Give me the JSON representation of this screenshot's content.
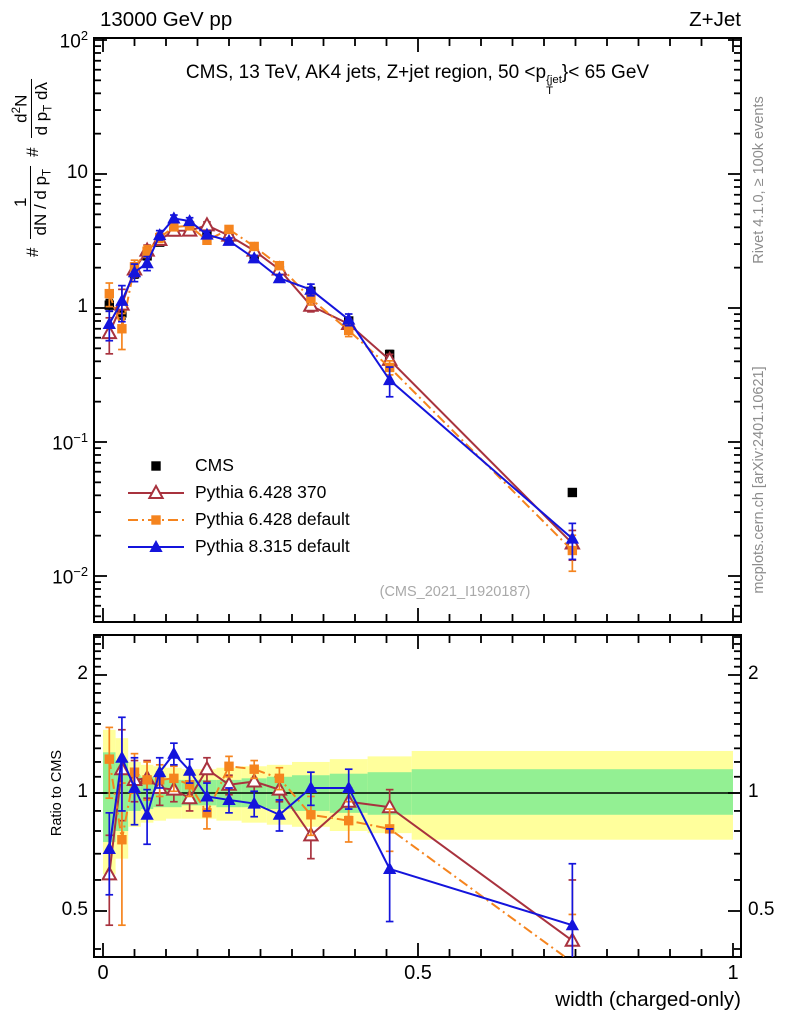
{
  "header": {
    "left": "13000 GeV pp",
    "right": "Z+Jet"
  },
  "panel_title_html": "CMS, 13 TeV, AK4 jets, Z+jet region, 50 &lt;p<span class=\"stk\"><sup>{jet</sup><sub>T</sub></span>}&lt; 65 GeV",
  "watermark": "(CMS_2021_I1920187)",
  "side_notes": {
    "top": "Rivet 4.1.0, ≥ 100k events",
    "bottom": "mcplots.cern.ch [arXiv:2401.10621]"
  },
  "ylabel": {
    "hash1": "#",
    "frac1_num": "1",
    "frac1_den_html": "dN / d p<sub>T</sub>",
    "hash2": "#",
    "frac2_num_html": "d<sup>2</sup>N",
    "frac2_den_html": "d p<sub>T</sub> dλ"
  },
  "ratio_ylabel": "Ratio to CMS",
  "xlabel": "width (charged-only)",
  "chart_data": {
    "type": "line-with-ratio",
    "title": "CMS, 13 TeV, AK4 jets, Z+jet region, 50 <pT{jet}< 65 GeV",
    "xlabel": "width (charged-only)",
    "x_axis": {
      "range": [
        -0.014,
        1.014
      ],
      "minor_step": 0.05,
      "major_ticks": [
        {
          "v": 0,
          "label": "0"
        },
        {
          "v": 0.5,
          "label": "0.5"
        },
        {
          "v": 1,
          "label": "1"
        }
      ]
    },
    "main_y_axis": {
      "scale": "log",
      "range": [
        0.0044,
        103
      ],
      "ticks": [
        {
          "v": 100,
          "html": "10<sup>2</sup>"
        },
        {
          "v": 10,
          "html": "10"
        },
        {
          "v": 1,
          "html": "1"
        },
        {
          "v": 0.1,
          "html": "10<sup>−1</sup>"
        },
        {
          "v": 0.01,
          "html": "10<sup>−2</sup>"
        }
      ]
    },
    "ratio_y_axis": {
      "scale": "log",
      "range": [
        0.38,
        2.53
      ],
      "ref_line": 1,
      "ticks": [
        {
          "v": 2,
          "label": "2"
        },
        {
          "v": 1,
          "label": "1"
        },
        {
          "v": 0.5,
          "label": "0.5"
        }
      ]
    },
    "bin_centers": [
      0.01,
      0.03,
      0.05,
      0.07,
      0.09,
      0.1125,
      0.1375,
      0.165,
      0.2,
      0.24,
      0.28,
      0.33,
      0.39,
      0.455,
      0.745
    ],
    "bin_edges": [
      0,
      0.02,
      0.04,
      0.06,
      0.08,
      0.1,
      0.125,
      0.15,
      0.18,
      0.22,
      0.26,
      0.3,
      0.36,
      0.42,
      0.49,
      1.0
    ],
    "series": [
      {
        "key": "cms",
        "name": "CMS",
        "color": "#000000",
        "marker": "square",
        "line": "none",
        "values": [
          1.05,
          0.92,
          1.8,
          2.45,
          3.1,
          3.7,
          3.9,
          3.6,
          3.3,
          2.5,
          1.9,
          1.33,
          0.8,
          0.45,
          0.042
        ],
        "err_rel": [
          0.1,
          0.1,
          0.07,
          0.06,
          0.05,
          0.05,
          0.05,
          0.05,
          0.05,
          0.05,
          0.05,
          0.05,
          0.06,
          0.07,
          0.06
        ],
        "ratio": null,
        "ratio_err": null
      },
      {
        "key": "pythia6-370",
        "name": "Pythia 6.428 370",
        "color": "#a8323e",
        "marker": "triangle-open",
        "line": "solid",
        "values": [
          0.65,
          1.06,
          1.94,
          2.68,
          3.22,
          3.77,
          3.78,
          4.14,
          3.47,
          2.68,
          1.94,
          1.04,
          0.76,
          0.41,
          0.0175
        ],
        "err_rel": [
          0.3,
          0.3,
          0.12,
          0.1,
          0.08,
          0.06,
          0.06,
          0.06,
          0.05,
          0.05,
          0.06,
          0.1,
          0.08,
          0.1,
          0.25
        ],
        "ratio": [
          0.62,
          1.15,
          1.08,
          1.09,
          1.03,
          1.02,
          0.97,
          1.15,
          1.05,
          1.07,
          1.02,
          0.78,
          0.95,
          0.92,
          0.42
        ],
        "ratio_err": [
          0.16,
          0.3,
          0.13,
          0.12,
          0.1,
          0.07,
          0.07,
          0.08,
          0.06,
          0.06,
          0.07,
          0.1,
          0.08,
          0.1,
          0.18
        ]
      },
      {
        "key": "pythia6-default",
        "name": "Pythia 6.428 default",
        "color": "#f5841e",
        "marker": "square",
        "line": "dashdot",
        "values": [
          1.28,
          0.7,
          2.03,
          2.65,
          3.35,
          4.03,
          4.1,
          3.2,
          3.86,
          2.88,
          2.07,
          1.17,
          0.68,
          0.36,
          0.0155
        ],
        "err_rel": [
          0.2,
          0.3,
          0.12,
          0.1,
          0.08,
          0.06,
          0.06,
          0.06,
          0.05,
          0.05,
          0.06,
          0.1,
          0.1,
          0.12,
          0.3
        ],
        "ratio": [
          1.22,
          0.76,
          1.13,
          1.08,
          1.08,
          1.09,
          1.05,
          0.89,
          1.17,
          1.15,
          1.09,
          0.88,
          0.85,
          0.81,
          0.37
        ],
        "ratio_err": [
          0.25,
          0.3,
          0.13,
          0.12,
          0.1,
          0.08,
          0.07,
          0.08,
          0.07,
          0.06,
          0.07,
          0.1,
          0.1,
          0.1,
          0.12
        ]
      },
      {
        "key": "pythia8-default",
        "name": "Pythia 8.315 default",
        "color": "#1414dc",
        "marker": "triangle",
        "line": "solid",
        "values": [
          0.76,
          1.13,
          1.85,
          2.16,
          3.5,
          4.66,
          4.45,
          3.53,
          3.17,
          2.35,
          1.67,
          1.37,
          0.82,
          0.29,
          0.019
        ],
        "err_rel": [
          0.25,
          0.3,
          0.15,
          0.12,
          0.08,
          0.06,
          0.06,
          0.06,
          0.05,
          0.05,
          0.06,
          0.1,
          0.1,
          0.25,
          0.3
        ],
        "ratio": [
          0.72,
          1.23,
          1.03,
          0.88,
          1.13,
          1.26,
          1.14,
          0.98,
          0.96,
          0.94,
          0.88,
          1.03,
          1.03,
          0.64,
          0.46
        ],
        "ratio_err": [
          0.17,
          0.33,
          0.2,
          0.14,
          0.1,
          0.08,
          0.08,
          0.08,
          0.07,
          0.07,
          0.08,
          0.1,
          0.12,
          0.17,
          0.2
        ]
      }
    ],
    "ratio_bands": {
      "yellow_color": "#ffff9c",
      "green_color": "#93f093",
      "per_bin": [
        [
          0.62,
          1.45,
          0.75,
          1.27
        ],
        [
          0.68,
          1.38,
          0.8,
          1.21
        ],
        [
          0.82,
          1.2,
          0.9,
          1.11
        ],
        [
          0.84,
          1.18,
          0.91,
          1.1
        ],
        [
          0.85,
          1.17,
          0.92,
          1.09
        ],
        [
          0.86,
          1.16,
          0.92,
          1.08
        ],
        [
          0.86,
          1.15,
          0.93,
          1.08
        ],
        [
          0.86,
          1.15,
          0.93,
          1.08
        ],
        [
          0.85,
          1.16,
          0.92,
          1.08
        ],
        [
          0.84,
          1.17,
          0.92,
          1.09
        ],
        [
          0.83,
          1.18,
          0.91,
          1.1
        ],
        [
          0.82,
          1.2,
          0.9,
          1.11
        ],
        [
          0.8,
          1.22,
          0.89,
          1.12
        ],
        [
          0.79,
          1.24,
          0.88,
          1.13
        ],
        [
          0.76,
          1.28,
          0.88,
          1.15
        ]
      ]
    },
    "legend_position": "middle-left",
    "grid": false
  }
}
